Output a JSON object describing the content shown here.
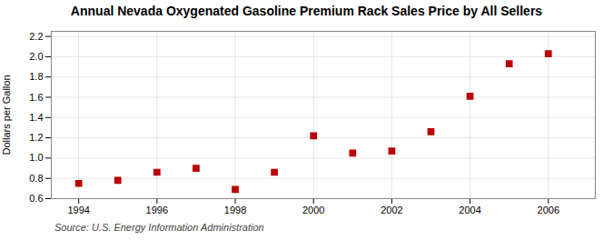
{
  "chart_data": {
    "type": "scatter",
    "title": "Annual Nevada Oxygenated Gasoline Premium Rack Sales Price by All Sellers",
    "ylabel": "Dollars per Gallon",
    "source": "Source: U.S. Energy Information Administration",
    "x": [
      1994,
      1995,
      1996,
      1997,
      1998,
      1999,
      2000,
      2001,
      2002,
      2003,
      2004,
      2005,
      2006
    ],
    "values": [
      0.75,
      0.78,
      0.86,
      0.9,
      0.69,
      0.86,
      1.22,
      1.05,
      1.07,
      1.26,
      1.61,
      1.93,
      2.03
    ],
    "color": "#bb0000",
    "marker": "square",
    "xlim": [
      1993.3,
      2007.2
    ],
    "ylim": [
      0.6,
      2.25
    ],
    "xticks": [
      1994,
      1996,
      1998,
      2000,
      2002,
      2004,
      2006
    ],
    "yticks": [
      0.6,
      0.8,
      {
        "value": 1,
        "label": "1.0"
      },
      1.2,
      1.4,
      1.6,
      1.8,
      {
        "value": 2,
        "label": "2.0"
      },
      2.2
    ],
    "grid": true
  }
}
